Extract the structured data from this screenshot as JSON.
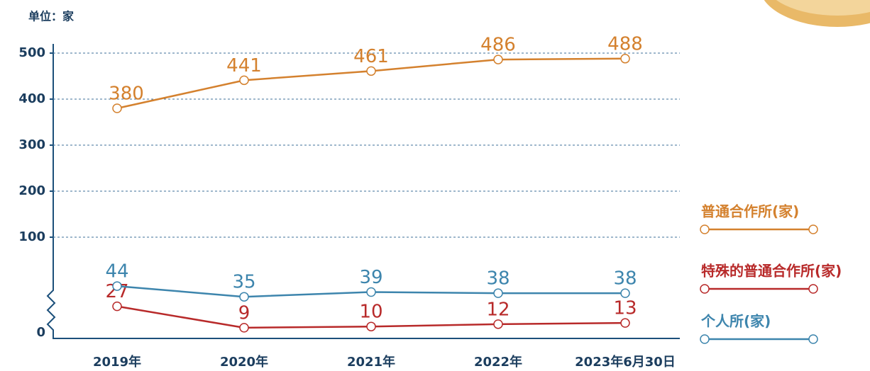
{
  "chart_data": {
    "type": "line",
    "unit_label": "单位：家",
    "categories": [
      "2019年",
      "2020年",
      "2021年",
      "2022年",
      "2023年6月30日"
    ],
    "series": [
      {
        "name": "普通合作所(家)",
        "color": "#d4812e",
        "values": [
          380,
          441,
          461,
          486,
          488
        ]
      },
      {
        "name": "特殊的普通合作所(家)",
        "color": "#b82a2a",
        "values": [
          27,
          9,
          10,
          12,
          13
        ]
      },
      {
        "name": "个人所(家)",
        "color": "#3d85ad",
        "values": [
          44,
          35,
          39,
          38,
          38
        ]
      }
    ],
    "ylim": [
      0,
      500
    ],
    "yticks": [
      0,
      100,
      200,
      300,
      400,
      500
    ],
    "axis_break": true,
    "grid": true,
    "legend": "right"
  }
}
